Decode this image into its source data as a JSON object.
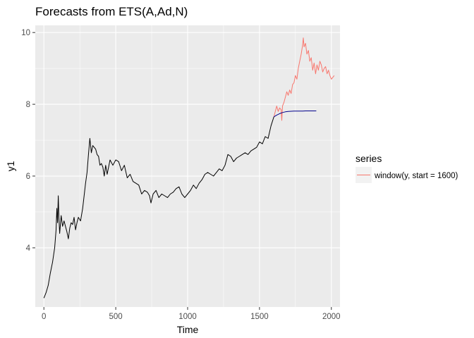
{
  "chart_data": {
    "type": "line",
    "title": "Forecasts from ETS(A,Ad,N)",
    "xlabel": "Time",
    "ylabel": "y1",
    "xlim": [
      -60,
      2060
    ],
    "ylim": [
      2.35,
      10.2
    ],
    "x_ticks": [
      0,
      500,
      1000,
      1500,
      2000
    ],
    "y_ticks": [
      4,
      6,
      8,
      10
    ],
    "grid": true,
    "panel_background": "#ebebeb",
    "legend": {
      "title": "series",
      "position": "right",
      "entries": [
        {
          "label": "window(y, start = 1600)",
          "color": "#f8766d"
        }
      ]
    },
    "series": [
      {
        "role": "observed",
        "color": "#000000",
        "x": [
          0,
          15,
          30,
          45,
          60,
          75,
          85,
          90,
          95,
          100,
          105,
          110,
          120,
          130,
          140,
          150,
          160,
          170,
          180,
          190,
          200,
          210,
          220,
          230,
          240,
          255,
          270,
          290,
          300,
          310,
          320,
          330,
          340,
          350,
          360,
          370,
          380,
          390,
          400,
          410,
          420,
          430,
          440,
          460,
          480,
          500,
          520,
          540,
          560,
          580,
          600,
          620,
          640,
          660,
          680,
          700,
          720,
          735,
          745,
          760,
          780,
          800,
          820,
          840,
          860,
          880,
          900,
          920,
          940,
          960,
          980,
          1000,
          1020,
          1040,
          1060,
          1080,
          1100,
          1120,
          1140,
          1160,
          1180,
          1200,
          1220,
          1240,
          1260,
          1280,
          1300,
          1320,
          1340,
          1360,
          1380,
          1400,
          1420,
          1440,
          1460,
          1480,
          1500,
          1520,
          1540,
          1560,
          1580,
          1600
        ],
        "y": [
          2.6,
          2.75,
          2.95,
          3.3,
          3.6,
          4.0,
          4.5,
          5.1,
          4.7,
          5.45,
          4.8,
          4.4,
          4.9,
          4.6,
          4.75,
          4.6,
          4.45,
          4.25,
          4.55,
          4.7,
          4.65,
          4.85,
          4.5,
          4.7,
          4.85,
          4.75,
          5.1,
          5.8,
          6.1,
          6.6,
          7.05,
          6.65,
          6.85,
          6.8,
          6.75,
          6.6,
          6.55,
          6.3,
          6.35,
          6.25,
          6.0,
          6.3,
          6.05,
          6.45,
          6.3,
          6.45,
          6.4,
          6.15,
          6.3,
          5.95,
          6.05,
          5.85,
          5.8,
          5.75,
          5.5,
          5.6,
          5.55,
          5.45,
          5.25,
          5.5,
          5.6,
          5.4,
          5.5,
          5.45,
          5.4,
          5.5,
          5.55,
          5.65,
          5.7,
          5.5,
          5.4,
          5.5,
          5.6,
          5.75,
          5.65,
          5.8,
          5.9,
          6.05,
          6.1,
          6.05,
          6.0,
          6.1,
          6.2,
          6.15,
          6.3,
          6.6,
          6.55,
          6.4,
          6.5,
          6.55,
          6.6,
          6.65,
          6.6,
          6.7,
          6.75,
          6.8,
          6.95,
          6.9,
          7.1,
          7.05,
          7.4,
          7.65
        ]
      },
      {
        "role": "window(y, start = 1600)",
        "color": "#f8766d",
        "x": [
          1600,
          1610,
          1620,
          1630,
          1640,
          1650,
          1655,
          1660,
          1670,
          1680,
          1690,
          1700,
          1710,
          1720,
          1730,
          1740,
          1750,
          1760,
          1770,
          1780,
          1790,
          1800,
          1805,
          1810,
          1820,
          1830,
          1840,
          1850,
          1860,
          1870,
          1880,
          1890,
          1900,
          1910,
          1920,
          1930,
          1940,
          1950,
          1960,
          1970,
          1980,
          1990,
          2000,
          2010,
          2020
        ],
        "y": [
          7.65,
          7.8,
          7.95,
          7.8,
          7.9,
          7.85,
          7.55,
          7.95,
          8.05,
          8.2,
          8.35,
          8.25,
          8.4,
          8.3,
          8.55,
          8.6,
          8.8,
          8.7,
          9.0,
          9.2,
          9.4,
          9.65,
          9.85,
          9.6,
          9.7,
          9.4,
          9.5,
          9.2,
          9.3,
          8.95,
          9.15,
          8.85,
          9.1,
          8.95,
          9.2,
          9.1,
          8.9,
          9.0,
          9.05,
          8.85,
          8.95,
          8.8,
          8.7,
          8.75,
          8.8
        ]
      },
      {
        "role": "forecast",
        "color": "#00008b",
        "x": [
          1600,
          1620,
          1640,
          1660,
          1680,
          1700,
          1720,
          1740,
          1760,
          1780,
          1800,
          1820,
          1840,
          1860,
          1880,
          1895
        ],
        "y": [
          7.65,
          7.7,
          7.74,
          7.77,
          7.79,
          7.8,
          7.805,
          7.81,
          7.81,
          7.81,
          7.81,
          7.815,
          7.815,
          7.815,
          7.815,
          7.815
        ]
      }
    ]
  }
}
